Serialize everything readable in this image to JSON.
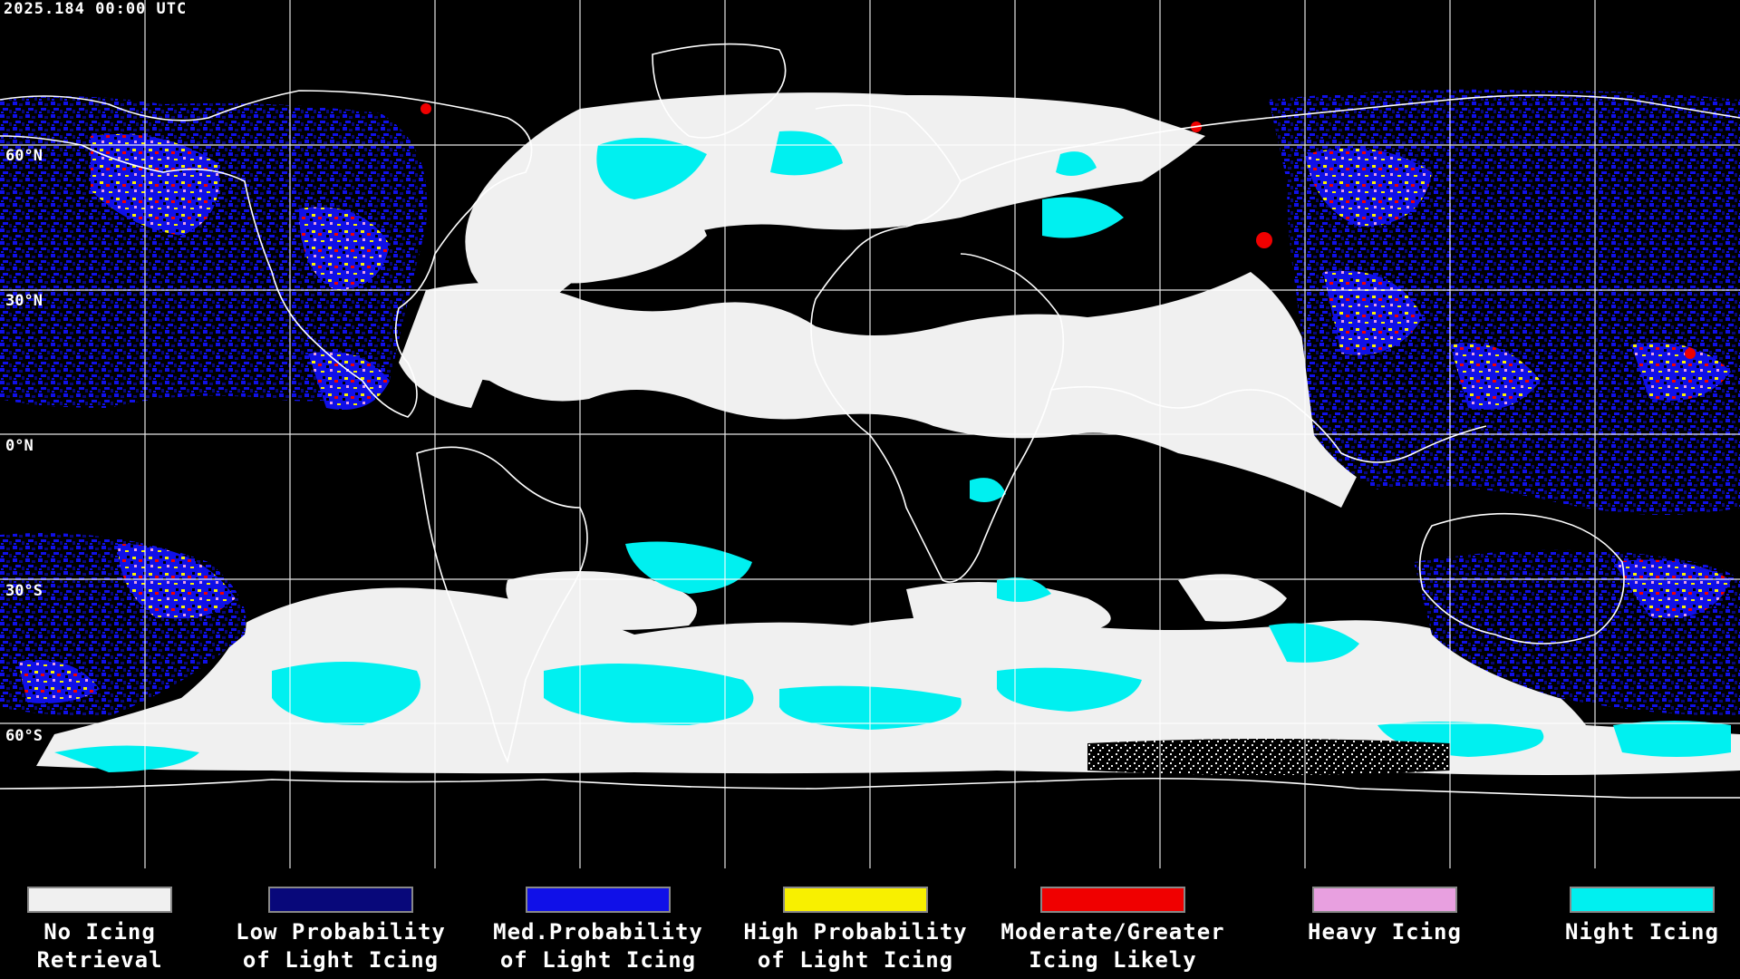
{
  "header": {
    "timestamp": "2025.184 00:00 UTC"
  },
  "map": {
    "latitude_labels": [
      "60°N",
      "30°N",
      "0°N",
      "30°S",
      "60°S"
    ],
    "colors": {
      "no_icing": "#f0f0f0",
      "night": "#00f0f0",
      "low": "#0a0a80",
      "med": "#1010e8",
      "high": "#f8f000",
      "moderate": "#f00000",
      "heavy": "#e8a0e0",
      "background": "#000000",
      "coastline": "#ffffff",
      "grid": "#ffffff"
    }
  },
  "legend": [
    {
      "label": "No Icing\nRetrieval",
      "color": "#f0f0f0",
      "icon": "no-icing-swatch"
    },
    {
      "label": "Low Probability\nof Light Icing",
      "color": "#08087a",
      "icon": "low-probability-swatch"
    },
    {
      "label": "Med.Probability\nof Light Icing",
      "color": "#1010e8",
      "icon": "med-probability-swatch"
    },
    {
      "label": "High Probability\nof Light Icing",
      "color": "#f8f000",
      "icon": "high-probability-swatch"
    },
    {
      "label": "Moderate/Greater\nIcing Likely",
      "color": "#f00000",
      "icon": "moderate-icing-swatch"
    },
    {
      "label": "Heavy Icing",
      "color": "#e8a0e0",
      "icon": "heavy-icing-swatch"
    },
    {
      "label": "Night Icing",
      "color": "#00f0f0",
      "icon": "night-icing-swatch"
    }
  ]
}
